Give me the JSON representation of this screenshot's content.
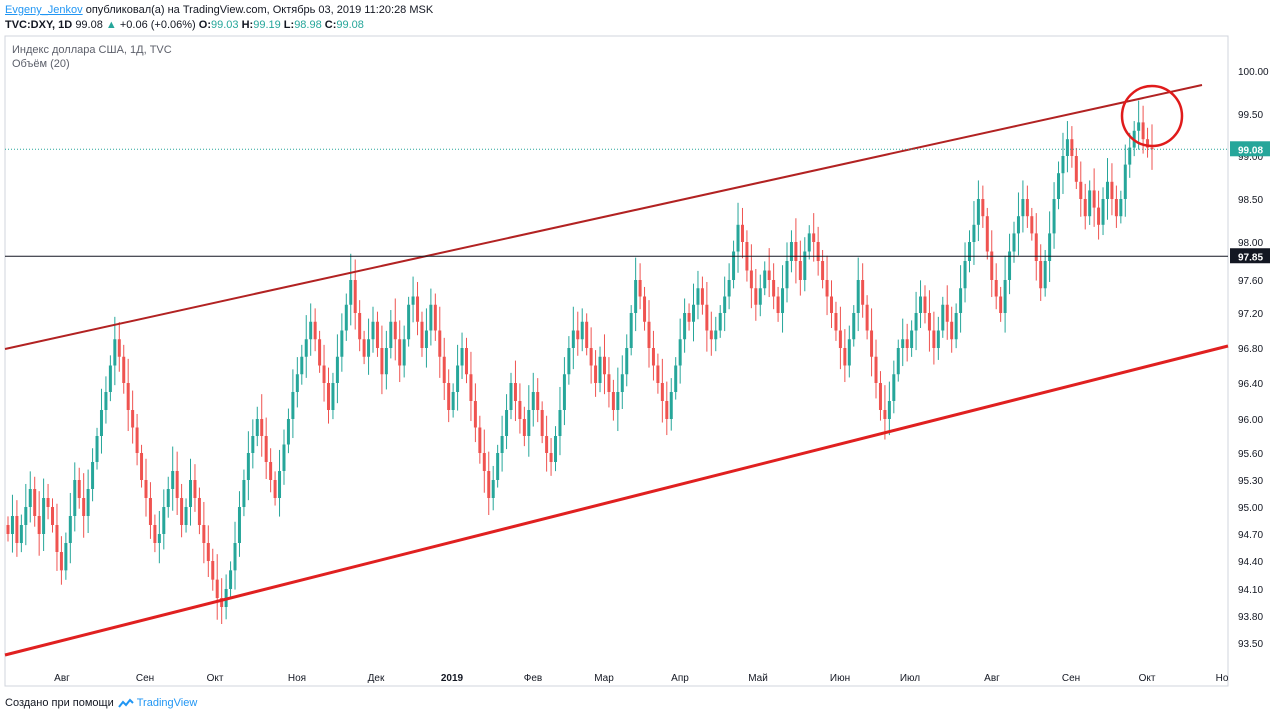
{
  "header": {
    "author": "Evgeny_Jenkov",
    "published_text": "опубликовал(а) на TradingView.com, Октябрь 03, 2019 11:20:28 MSK"
  },
  "ticker": {
    "symbol_interval": "TVC:DXY, 1D",
    "last": "99.08",
    "change_arrow": "▲",
    "change": "+0.06 (+0.06%)",
    "o_label": "O:",
    "o_val": "99.03",
    "h_label": "H:",
    "h_val": "99.19",
    "l_label": "L:",
    "l_val": "98.98",
    "c_label": "C:",
    "c_val": "99.08"
  },
  "legend": {
    "title": "Индекс доллара США, 1Д, TVC",
    "volume": "Объём (20)"
  },
  "footer": {
    "created_with": "Создано при помощи",
    "brand": "TradingView"
  },
  "colors": {
    "up": "#26a69a",
    "down": "#ef5350",
    "channel_upper": "#b22222",
    "channel_lower": "#e02020",
    "circle": "#e01b1b",
    "last_price": "#26a69a"
  },
  "chart_data": {
    "type": "candlestick",
    "y_axis_labels": [
      "100.00",
      "99.50",
      "99.00",
      "98.50",
      "98.00",
      "97.60",
      "97.20",
      "96.80",
      "96.40",
      "96.00",
      "95.60",
      "95.30",
      "95.00",
      "94.70",
      "94.40",
      "94.10",
      "93.80",
      "93.50"
    ],
    "x_axis_labels": [
      "Авг",
      "Сен",
      "Окт",
      "Ноя",
      "Дек",
      "2019",
      "Фев",
      "Мар",
      "Апр",
      "Май",
      "Июн",
      "Июл",
      "Авг",
      "Сен",
      "Окт",
      "Но"
    ],
    "last_price_label": "99.08",
    "horizontal_line_label": "97.85",
    "horizontal_line_value": 97.85,
    "last_price_value": 99.08,
    "closes_daily": [
      94.7,
      94.9,
      94.6,
      94.8,
      95.0,
      95.2,
      94.9,
      94.7,
      95.1,
      95.0,
      94.8,
      94.5,
      94.3,
      94.6,
      94.9,
      95.3,
      95.1,
      94.9,
      95.2,
      95.5,
      95.8,
      96.1,
      96.3,
      96.6,
      96.9,
      96.7,
      96.4,
      96.1,
      95.9,
      95.6,
      95.3,
      95.1,
      94.8,
      94.6,
      94.7,
      95.0,
      95.2,
      95.4,
      95.1,
      94.8,
      95.0,
      95.3,
      95.1,
      94.8,
      94.6,
      94.4,
      94.2,
      94.0,
      93.9,
      94.1,
      94.3,
      94.6,
      95.0,
      95.3,
      95.6,
      95.8,
      96.0,
      95.8,
      95.5,
      95.3,
      95.1,
      95.4,
      95.7,
      96.0,
      96.3,
      96.5,
      96.7,
      96.9,
      97.1,
      96.9,
      96.6,
      96.4,
      96.1,
      96.4,
      96.7,
      97.0,
      97.3,
      97.6,
      97.2,
      96.9,
      96.7,
      96.9,
      97.1,
      96.8,
      96.5,
      96.8,
      97.1,
      96.9,
      96.6,
      96.9,
      97.3,
      97.4,
      97.1,
      96.8,
      97.0,
      97.3,
      97.0,
      96.7,
      96.4,
      96.1,
      96.3,
      96.6,
      96.8,
      96.5,
      96.2,
      95.9,
      95.6,
      95.4,
      95.1,
      95.3,
      95.6,
      95.8,
      96.1,
      96.4,
      96.2,
      96.0,
      95.8,
      96.1,
      96.3,
      96.1,
      95.8,
      95.6,
      95.5,
      95.8,
      96.1,
      96.5,
      96.8,
      97.0,
      96.9,
      97.1,
      96.8,
      96.6,
      96.4,
      96.7,
      96.5,
      96.3,
      96.1,
      96.3,
      96.5,
      96.8,
      97.2,
      97.6,
      97.4,
      97.1,
      96.8,
      96.6,
      96.4,
      96.2,
      96.0,
      96.3,
      96.6,
      96.9,
      97.2,
      97.1,
      97.3,
      97.5,
      97.3,
      97.0,
      96.9,
      97.0,
      97.2,
      97.4,
      97.6,
      97.9,
      98.2,
      98.0,
      97.7,
      97.5,
      97.3,
      97.5,
      97.7,
      97.6,
      97.4,
      97.2,
      97.5,
      97.8,
      98.0,
      97.8,
      97.6,
      97.9,
      98.1,
      98.0,
      97.8,
      97.6,
      97.4,
      97.2,
      97.0,
      96.8,
      96.6,
      96.9,
      97.2,
      97.6,
      97.3,
      97.0,
      96.7,
      96.4,
      96.1,
      96.0,
      96.2,
      96.5,
      96.8,
      96.9,
      96.8,
      97.0,
      97.2,
      97.4,
      97.2,
      97.0,
      96.8,
      97.0,
      97.3,
      97.1,
      96.9,
      97.2,
      97.5,
      97.8,
      98.0,
      98.2,
      98.5,
      98.3,
      97.9,
      97.6,
      97.4,
      97.2,
      97.6,
      97.9,
      98.1,
      98.3,
      98.5,
      98.3,
      98.1,
      97.8,
      97.5,
      97.8,
      98.1,
      98.5,
      98.8,
      99.0,
      99.2,
      99.0,
      98.7,
      98.5,
      98.3,
      98.6,
      98.4,
      98.2,
      98.5,
      98.7,
      98.5,
      98.3,
      98.5,
      98.9,
      99.1,
      99.3,
      99.4,
      99.2,
      99.1,
      99.08
    ]
  }
}
